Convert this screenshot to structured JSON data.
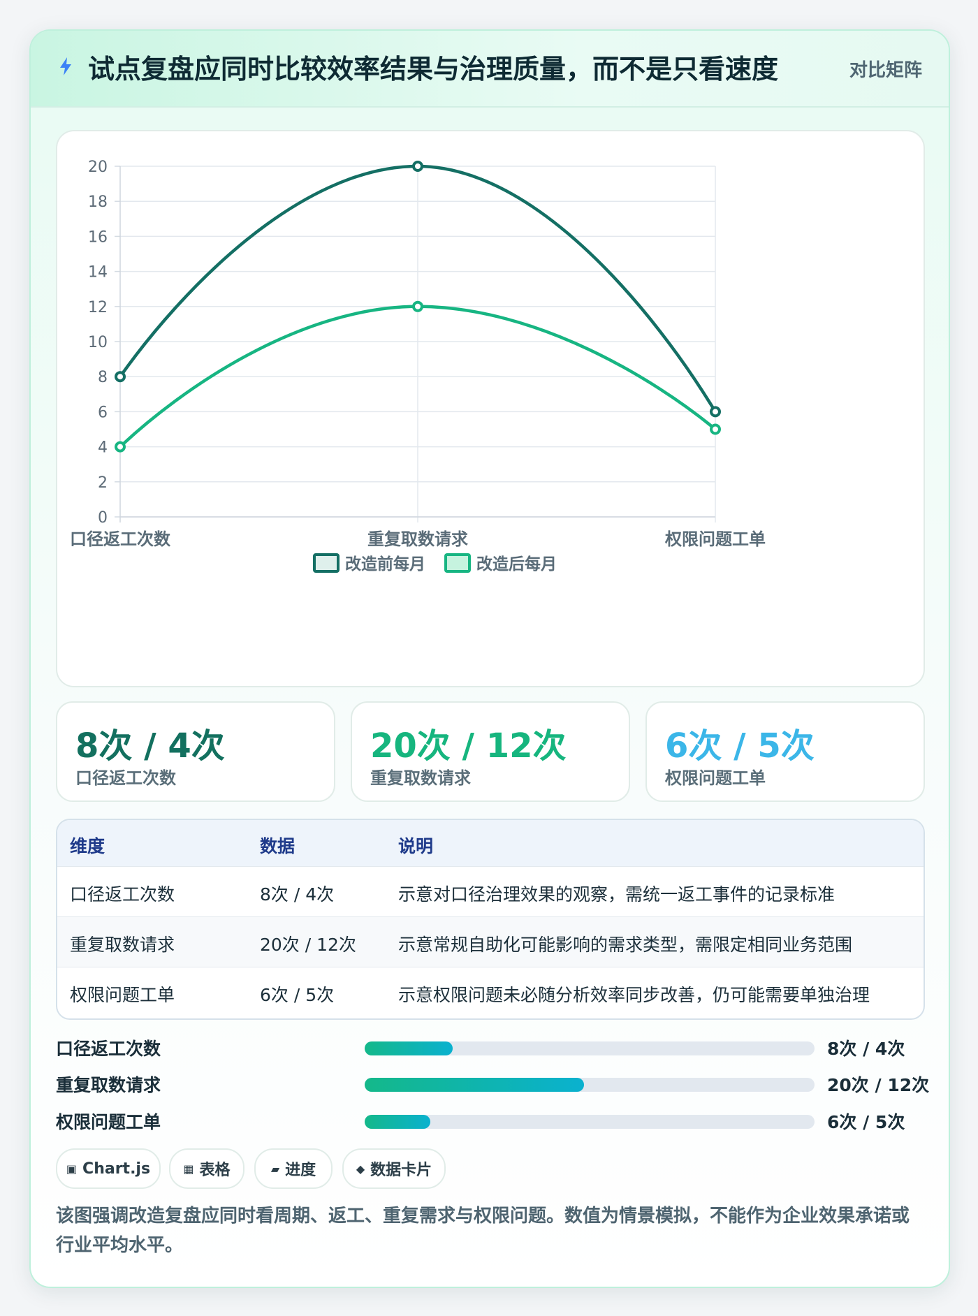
{
  "header": {
    "title": "试点复盘应同时比较效率结果与治理质量，而不是只看速度",
    "badge": "对比矩阵",
    "icon": "lightning-icon"
  },
  "colors": {
    "series_before": "#146f64",
    "series_after": "#17b582",
    "kpi1": "#13705f",
    "kpi2": "#16b57e",
    "kpi3": "#3bb6e8"
  },
  "chart_data": {
    "type": "line",
    "categories": [
      "口径返工次数",
      "重复取数请求",
      "权限问题工单"
    ],
    "series": [
      {
        "name": "改造前每月",
        "values": [
          8,
          20,
          6
        ]
      },
      {
        "name": "改造后每月",
        "values": [
          4,
          12,
          5
        ]
      }
    ],
    "ylim": [
      0,
      20
    ],
    "yticks": [
      0,
      2,
      4,
      6,
      8,
      10,
      12,
      14,
      16,
      18,
      20
    ],
    "grid": true,
    "legend": "bottom",
    "smooth": true
  },
  "kpis": [
    {
      "value": "8次 / 4次",
      "label": "口径返工次数"
    },
    {
      "value": "20次 / 12次",
      "label": "重复取数请求"
    },
    {
      "value": "6次 / 5次",
      "label": "权限问题工单"
    }
  ],
  "table": {
    "headers": [
      "维度",
      "数据",
      "说明"
    ],
    "rows": [
      [
        "口径返工次数",
        "8次 / 4次",
        "示意对口径治理效果的观察，需统一返工事件的记录标准"
      ],
      [
        "重复取数请求",
        "20次 / 12次",
        "示意常规自助化可能影响的需求类型，需限定相同业务范围"
      ],
      [
        "权限问题工单",
        "6次 / 5次",
        "示意权限问题未必随分析效率同步改善，仍可能需要单独治理"
      ]
    ]
  },
  "progress": [
    {
      "label": "口径返工次数",
      "value": "8次 / 4次",
      "fraction": 0.195
    },
    {
      "label": "重复取数请求",
      "value": "20次 / 12次",
      "fraction": 0.488
    },
    {
      "label": "权限问题工单",
      "value": "6次 / 5次",
      "fraction": 0.146
    }
  ],
  "chips": [
    {
      "icon": "▣",
      "label": "Chart.js"
    },
    {
      "icon": "▦",
      "label": "表格"
    },
    {
      "icon": "▰",
      "label": "进度"
    },
    {
      "icon": "◆",
      "label": "数据卡片"
    }
  ],
  "note": "该图强调改造复盘应同时看周期、返工、重复需求与权限问题。数值为情景模拟，不能作为企业效果承诺或行业平均水平。"
}
